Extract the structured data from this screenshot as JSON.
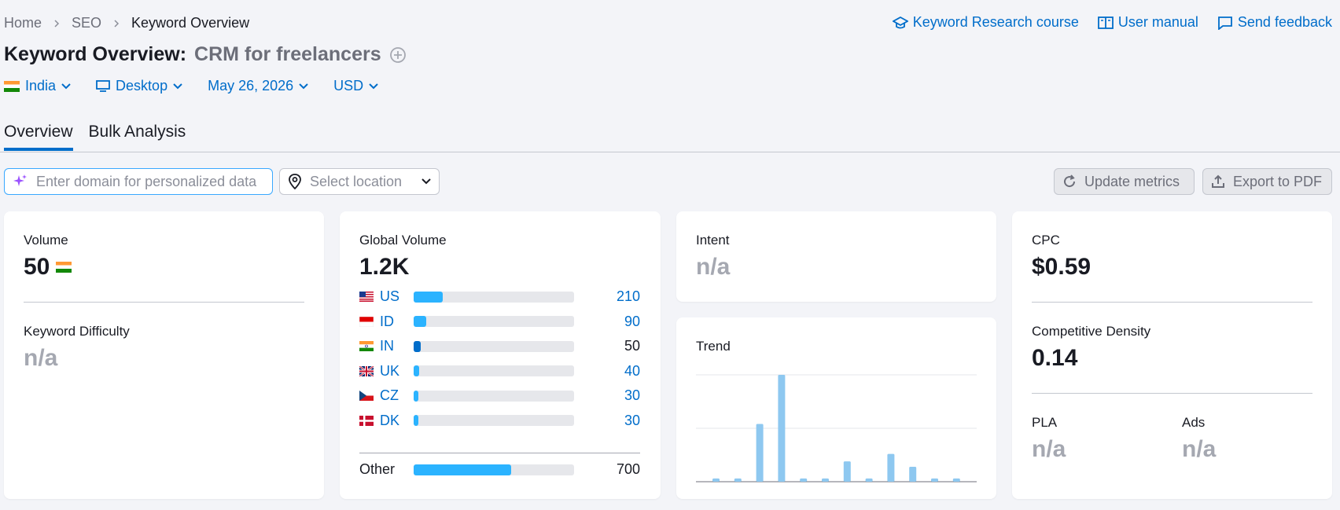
{
  "breadcrumb": {
    "home": "Home",
    "seo": "SEO",
    "current": "Keyword Overview"
  },
  "links": {
    "course": "Keyword Research course",
    "manual": "User manual",
    "feedback": "Send feedback"
  },
  "title": {
    "prefix": "Keyword Overview:",
    "keyword": "CRM for freelancers"
  },
  "filters": {
    "country": "India",
    "device": "Desktop",
    "date": "May 26, 2026",
    "currency": "USD"
  },
  "tabs": [
    "Overview",
    "Bulk Analysis"
  ],
  "domain_input": {
    "placeholder": "Enter domain for personalized data"
  },
  "location": {
    "placeholder": "Select location"
  },
  "buttons": {
    "update": "Update metrics",
    "export": "Export to PDF"
  },
  "volume": {
    "label": "Volume",
    "value": "50"
  },
  "kd": {
    "label": "Keyword Difficulty",
    "value": "n/a"
  },
  "global": {
    "label": "Global Volume",
    "value": "1.2K",
    "rows": [
      {
        "code": "US",
        "value": "210",
        "fill": 0.18
      },
      {
        "code": "ID",
        "value": "90",
        "fill": 0.08
      },
      {
        "code": "IN",
        "value": "50",
        "fill": 0.045
      },
      {
        "code": "UK",
        "value": "40",
        "fill": 0.035
      },
      {
        "code": "CZ",
        "value": "30",
        "fill": 0.03
      },
      {
        "code": "DK",
        "value": "30",
        "fill": 0.03
      }
    ],
    "other": {
      "label": "Other",
      "value": "700",
      "fill": 0.61
    }
  },
  "intent": {
    "label": "Intent",
    "value": "n/a"
  },
  "trend": {
    "label": "Trend",
    "values": [
      0.03,
      0.03,
      0.54,
      1.0,
      0.03,
      0.03,
      0.19,
      0.03,
      0.26,
      0.14,
      0.03,
      0.03
    ]
  },
  "cpc": {
    "label": "CPC",
    "value": "$0.59"
  },
  "cd": {
    "label": "Competitive Density",
    "value": "0.14"
  },
  "pla": {
    "label": "PLA",
    "value": "n/a"
  },
  "ads": {
    "label": "Ads",
    "value": "n/a"
  },
  "colors": {
    "accent": "#006dca",
    "bar": "#2bb3ff",
    "trend": "#8ec8f0"
  }
}
